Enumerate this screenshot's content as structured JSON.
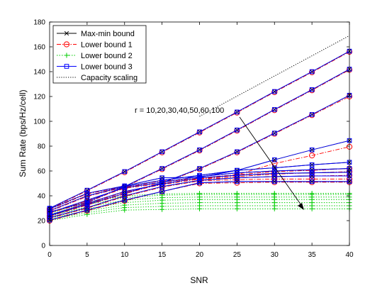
{
  "chart_data": {
    "type": "line",
    "xlabel": "SNR",
    "ylabel": "Sum Rate (bps/Hz/cell)",
    "xlim": [
      0,
      40
    ],
    "ylim": [
      0,
      180
    ],
    "xticks": [
      0,
      5,
      10,
      15,
      20,
      25,
      30,
      35,
      40
    ],
    "yticks": [
      0,
      20,
      40,
      60,
      80,
      100,
      120,
      140,
      160,
      180
    ],
    "grid": false,
    "legend_position": "top-left",
    "annotation": "r = 10,20,30,40,50,60,100",
    "x": [
      0,
      5,
      10,
      15,
      20,
      25,
      30,
      35,
      40
    ],
    "legend": [
      {
        "key": "maxmin",
        "label": "Max-min bound",
        "color": "#000000",
        "dash": "",
        "marker": "x"
      },
      {
        "key": "lb1",
        "label": "Lower bound 1",
        "color": "#ff0000",
        "dash": "6,2,1.5,2",
        "marker": "o"
      },
      {
        "key": "lb2",
        "label": "Lower bound 2",
        "color": "#00cc00",
        "dash": "1.5,2",
        "marker": "+"
      },
      {
        "key": "lb3",
        "label": "Lower bound 3",
        "color": "#0000ff",
        "dash": "",
        "marker": "s"
      },
      {
        "key": "cap",
        "label": "Capacity scaling",
        "color": "#000000",
        "dash": "1.2,2",
        "marker": ""
      }
    ],
    "series": [
      {
        "group": "maxmin",
        "r": 10,
        "values": [
          20.5,
          28.5,
          36.5,
          43.5,
          50.5,
          51.5,
          51.5,
          51.5,
          51.5
        ]
      },
      {
        "group": "maxmin",
        "r": 20,
        "values": [
          22.5,
          30.5,
          40.0,
          47.5,
          52.5,
          54.5,
          55.5,
          56.0,
          56.0
        ]
      },
      {
        "group": "maxmin",
        "r": 30,
        "values": [
          24.5,
          34.0,
          43.5,
          49.5,
          54.5,
          56.5,
          58.0,
          58.5,
          59.0
        ]
      },
      {
        "group": "maxmin",
        "r": 40,
        "values": [
          26.5,
          36.5,
          46.5,
          51.0,
          55.5,
          58.5,
          60.0,
          61.0,
          62.0
        ]
      },
      {
        "group": "maxmin",
        "r": 50,
        "values": [
          28.0,
          40.0,
          47.5,
          52.5,
          56.5,
          60.5,
          62.5,
          65.0,
          67.0
        ]
      },
      {
        "group": "maxmin",
        "r": 60,
        "values": [
          29.5,
          42.0,
          48.0,
          54.5,
          55.0,
          60.5,
          69.0,
          77.0,
          84.5
        ]
      },
      {
        "group": "maxmin",
        "r": 100,
        "values": [
          30.0,
          44.5,
          59.5,
          75.5,
          91.5,
          107.5,
          124.0,
          140.0,
          156.5
        ]
      },
      {
        "group": "maxmin",
        "r": 100,
        "values": [
          27.0,
          35.0,
          47.5,
          62.0,
          77.0,
          93.0,
          109.5,
          125.5,
          142.0
        ]
      },
      {
        "group": "maxmin",
        "r": 100,
        "values": [
          24.0,
          33.0,
          42.0,
          50.5,
          62.0,
          75.5,
          90.5,
          105.5,
          121.0
        ]
      },
      {
        "group": "lb1",
        "values": [
          20.0,
          28.0,
          36.0,
          43.5,
          50.0,
          50.5,
          51.0,
          51.0,
          51.0
        ]
      },
      {
        "group": "lb1",
        "values": [
          22.0,
          30.0,
          39.5,
          47.0,
          52.0,
          53.0,
          53.5,
          53.5,
          53.5
        ]
      },
      {
        "group": "lb1",
        "values": [
          24.0,
          33.5,
          43.0,
          49.0,
          53.5,
          54.5,
          55.5,
          56.0,
          56.5
        ]
      },
      {
        "group": "lb1",
        "values": [
          26.0,
          36.0,
          46.0,
          50.0,
          54.0,
          55.5,
          57.5,
          58.5,
          59.5
        ]
      },
      {
        "group": "lb1",
        "values": [
          27.5,
          39.5,
          47.0,
          51.0,
          54.5,
          57.0,
          59.5,
          60.5,
          62.0
        ]
      },
      {
        "group": "lb1",
        "values": [
          29.0,
          41.5,
          47.5,
          52.0,
          53.5,
          57.0,
          66.0,
          72.5,
          79.5
        ]
      },
      {
        "group": "lb1",
        "values": [
          29.5,
          44.0,
          59.0,
          75.0,
          91.0,
          107.0,
          123.5,
          139.5,
          156.0
        ]
      },
      {
        "group": "lb1",
        "values": [
          26.5,
          34.5,
          47.0,
          61.5,
          76.5,
          92.5,
          109.0,
          125.0,
          141.5
        ]
      },
      {
        "group": "lb1",
        "values": [
          23.5,
          32.5,
          41.5,
          50.0,
          61.5,
          75.0,
          90.0,
          105.0,
          120.0
        ]
      },
      {
        "group": "lb2",
        "values": [
          20.0,
          25.0,
          28.5,
          29.0,
          29.5,
          29.5,
          29.5,
          29.5,
          29.5
        ]
      },
      {
        "group": "lb2",
        "values": [
          21.0,
          26.5,
          30.5,
          31.5,
          32.0,
          32.0,
          32.0,
          32.0,
          32.0
        ]
      },
      {
        "group": "lb2",
        "values": [
          22.0,
          28.0,
          32.5,
          34.0,
          34.5,
          34.5,
          34.5,
          34.5,
          34.5
        ]
      },
      {
        "group": "lb2",
        "values": [
          23.0,
          29.5,
          34.5,
          36.5,
          37.0,
          37.0,
          37.0,
          37.0,
          37.0
        ]
      },
      {
        "group": "lb2",
        "values": [
          24.0,
          31.0,
          36.5,
          38.5,
          39.0,
          39.0,
          39.0,
          39.0,
          39.0
        ]
      },
      {
        "group": "lb2",
        "values": [
          25.0,
          33.0,
          38.5,
          40.5,
          41.0,
          41.0,
          41.0,
          41.0,
          41.0
        ]
      },
      {
        "group": "lb2",
        "values": [
          26.0,
          34.5,
          40.0,
          41.5,
          42.0,
          42.0,
          42.0,
          42.0,
          42.0
        ]
      },
      {
        "group": "lb3",
        "values": [
          20.5,
          28.5,
          36.5,
          43.5,
          50.5,
          51.5,
          51.5,
          51.5,
          51.5
        ]
      },
      {
        "group": "lb3",
        "values": [
          22.5,
          30.5,
          40.0,
          47.5,
          52.5,
          54.5,
          55.5,
          56.0,
          56.0
        ]
      },
      {
        "group": "lb3",
        "values": [
          24.5,
          34.0,
          43.5,
          49.5,
          54.5,
          56.5,
          58.0,
          58.5,
          59.0
        ]
      },
      {
        "group": "lb3",
        "values": [
          26.5,
          36.5,
          46.5,
          51.0,
          55.5,
          58.5,
          60.0,
          61.0,
          62.0
        ]
      },
      {
        "group": "lb3",
        "values": [
          28.0,
          40.0,
          47.5,
          52.5,
          56.5,
          60.5,
          62.5,
          65.0,
          67.0
        ]
      },
      {
        "group": "lb3",
        "values": [
          29.5,
          42.0,
          48.0,
          54.5,
          55.0,
          60.5,
          69.0,
          77.0,
          84.5
        ]
      },
      {
        "group": "lb3",
        "values": [
          30.0,
          44.5,
          59.5,
          75.5,
          91.5,
          107.5,
          124.0,
          140.0,
          156.5
        ]
      },
      {
        "group": "lb3",
        "values": [
          27.0,
          35.0,
          47.5,
          62.0,
          77.0,
          93.0,
          109.5,
          125.5,
          142.0
        ]
      },
      {
        "group": "lb3",
        "values": [
          24.0,
          33.0,
          42.0,
          50.5,
          62.0,
          75.5,
          90.5,
          105.5,
          121.0
        ]
      },
      {
        "group": "cap",
        "x": [
          20,
          40
        ],
        "values": [
          104,
          169
        ]
      }
    ]
  }
}
